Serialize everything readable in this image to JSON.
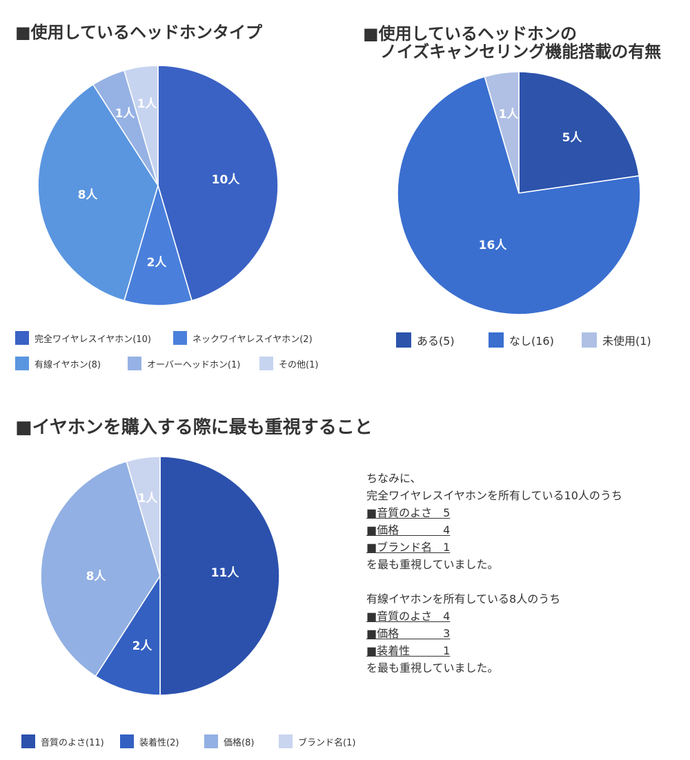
{
  "chart_data": [
    {
      "type": "pie",
      "title": "■使用しているヘッドホンタイプ",
      "categories": [
        "完全ワイヤレスイヤホン",
        "ネックワイヤレスイヤホン",
        "有線イヤホン",
        "オーバーヘッドホン",
        "その他"
      ],
      "values": [
        10,
        2,
        8,
        1,
        1
      ],
      "slice_labels": [
        "10人",
        "2人",
        "8人",
        "1人",
        "1人"
      ],
      "legend": [
        "完全ワイヤレスイヤホン(10)",
        "ネックワイヤレスイヤホン(2)",
        "有線イヤホン(8)",
        "オーバーヘッドホン(1)",
        "その他(1)"
      ],
      "colors": [
        "#3a62c4",
        "#4a80dc",
        "#5a96e0",
        "#96b2e4",
        "#c6d4f0"
      ],
      "legend_placement": "bottom"
    },
    {
      "type": "pie",
      "title": "■使用しているヘッドホンの",
      "title_line2": "ノイズキャンセリング機能搭載の有無",
      "categories": [
        "ある",
        "なし",
        "未使用"
      ],
      "values": [
        5,
        16,
        1
      ],
      "slice_labels": [
        "5人",
        "16人",
        "1人"
      ],
      "legend": [
        "ある(5)",
        "なし(16)",
        "未使用(1)"
      ],
      "colors": [
        "#2d53ab",
        "#3a6fd0",
        "#afc0e4"
      ],
      "legend_placement": "bottom"
    },
    {
      "type": "pie",
      "title": "■イヤホンを購入する際に最も重視すること",
      "categories": [
        "音質のよさ",
        "装着性",
        "価格",
        "ブランド名"
      ],
      "values": [
        11,
        2,
        8,
        1
      ],
      "slice_labels": [
        "11人",
        "2人",
        "8人",
        "1人"
      ],
      "legend": [
        "音質のよさ(11)",
        "装着性(2)",
        "価格(8)",
        "ブランド名(1)"
      ],
      "colors": [
        "#2b51ad",
        "#3460c2",
        "#92b0e3",
        "#c9d5ef"
      ],
      "legend_placement": "bottom"
    }
  ],
  "note": {
    "lines": [
      {
        "text": "ちなみに、",
        "ul": false
      },
      {
        "text": "完全ワイヤレスイヤホンを所有している10人のうち",
        "ul": false
      },
      {
        "text": "■音質のよさ　5",
        "ul": true
      },
      {
        "text": "■価格　　　　4",
        "ul": true
      },
      {
        "text": "■ブランド名　1",
        "ul": true
      },
      {
        "text": "を最も重視していました。",
        "ul": false
      },
      {
        "text": "",
        "ul": false
      },
      {
        "text": "有線イヤホンを所有している8人のうち",
        "ul": false
      },
      {
        "text": "■音質のよさ　4",
        "ul": true
      },
      {
        "text": "■価格　　　　3",
        "ul": true
      },
      {
        "text": "■装着性　　　1",
        "ul": true
      },
      {
        "text": "を最も重視していました。",
        "ul": false
      }
    ]
  }
}
